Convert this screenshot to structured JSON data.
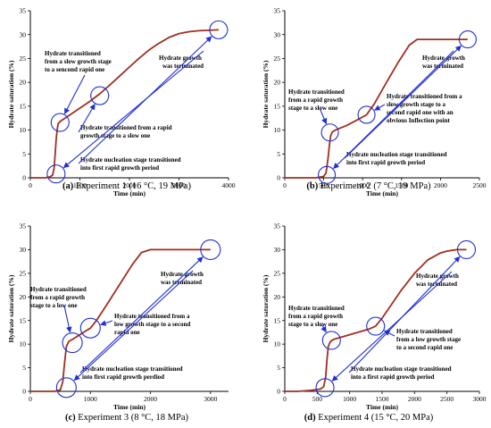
{
  "colors": {
    "curve": "#a0301e",
    "marker": "#1f2fd0",
    "axis": "#000000"
  },
  "chart_data": [
    {
      "type": "line",
      "caption_letter": "(a)",
      "caption_text": "Experiment 1 (16 °C, 19 MPa)",
      "xlabel": "Time (min)",
      "ylabel": "Hydrate saturation (%)",
      "xlim": [
        0,
        4000
      ],
      "ylim": [
        0,
        35
      ],
      "xticks": [
        0,
        1000,
        2000,
        3000,
        4000
      ],
      "yticks": [
        0,
        5,
        10,
        15,
        20,
        25,
        30,
        35
      ],
      "x": [
        0,
        150,
        300,
        400,
        450,
        480,
        500,
        520,
        540,
        560,
        600,
        800,
        1000,
        1200,
        1400,
        1600,
        1800,
        2000,
        2200,
        2400,
        2600,
        2800,
        3000,
        3200,
        3400,
        3600,
        3800
      ],
      "y": [
        0,
        0,
        0,
        0.2,
        0.6,
        2,
        5,
        8,
        10,
        11.3,
        11.8,
        13.2,
        14.6,
        16,
        17.6,
        19.4,
        21.3,
        23.2,
        25.1,
        26.8,
        28.2,
        29.4,
        30.2,
        30.6,
        30.8,
        30.9,
        31
      ],
      "markers": [
        {
          "x": 520,
          "y": 0.8
        },
        {
          "x": 600,
          "y": 11.6
        },
        {
          "x": 1400,
          "y": 17.2
        },
        {
          "x": 3800,
          "y": 31
        }
      ],
      "annotations": [
        {
          "lines": [
            "Hydrate growth",
            "was terminated"
          ]
        },
        {
          "lines": [
            "Hydrate transitioned",
            "from a slow growth stage",
            "to a sencond rapid one"
          ]
        },
        {
          "lines": [
            "Hydrate transitioned from a rapid",
            "growth stage to a slow one"
          ]
        },
        {
          "lines": [
            "Hydrate nucleation stage  transitioned",
            "into first rapid growth period"
          ]
        }
      ]
    },
    {
      "type": "line",
      "caption_letter": "(b)",
      "caption_text": "Experiment 2 (7 °C, 19 MPa)",
      "xlabel": "Time (min)",
      "ylabel": "Hydrate saturation (%)",
      "xlim": [
        0,
        2500
      ],
      "ylim": [
        0,
        35
      ],
      "xticks": [
        0,
        500,
        1000,
        1500,
        2000,
        2500
      ],
      "yticks": [
        0,
        5,
        10,
        15,
        20,
        25,
        30,
        35
      ],
      "x": [
        0,
        200,
        400,
        500,
        530,
        555,
        575,
        590,
        610,
        650,
        800,
        950,
        1050,
        1150,
        1300,
        1450,
        1600,
        1700,
        1800,
        2000,
        2200,
        2350
      ],
      "y": [
        0,
        0,
        0,
        0.3,
        1,
        4,
        7,
        8.8,
        9.6,
        10,
        11,
        12.3,
        13.2,
        15.5,
        19.8,
        24,
        27.8,
        29,
        29,
        29,
        29,
        29
      ],
      "markers": [
        {
          "x": 540,
          "y": 0.6
        },
        {
          "x": 580,
          "y": 9.5
        },
        {
          "x": 1050,
          "y": 13.2
        },
        {
          "x": 2350,
          "y": 29
        }
      ],
      "annotations": [
        {
          "lines": [
            "Hydrate growth",
            "was terminated"
          ]
        },
        {
          "lines": [
            "Hydrate transitioned",
            "from a rapid growth",
            "stage to a slow one"
          ]
        },
        {
          "lines": [
            "Hydrate transitioned from a",
            "slow growth stage to a",
            "second rapid one with an",
            "obvious  Inflection point"
          ]
        },
        {
          "lines": [
            "Hydrate nucleation stage  transitioned",
            "into first rapid growth period"
          ]
        }
      ]
    },
    {
      "type": "line",
      "caption_letter": "(c)",
      "caption_text": "Experiment 3 (8 °C, 18 MPa)",
      "xlabel": "Time (min)",
      "ylabel": "Hydrate saturation (%)",
      "xlim": [
        0,
        3300
      ],
      "ylim": [
        0,
        35
      ],
      "xticks": [
        0,
        1000,
        2000,
        3000
      ],
      "yticks": [
        0,
        5,
        10,
        15,
        20,
        25,
        30,
        35
      ],
      "x": [
        0,
        200,
        400,
        500,
        540,
        570,
        600,
        640,
        700,
        800,
        900,
        1000,
        1100,
        1300,
        1500,
        1700,
        1850,
        2000,
        2200,
        2500,
        2800,
        3000
      ],
      "y": [
        0,
        0,
        0,
        0.3,
        2,
        6,
        9.5,
        10.6,
        11,
        11.8,
        12.6,
        13.4,
        15,
        18.9,
        22.9,
        26.9,
        29.4,
        30,
        30,
        30,
        30,
        30
      ],
      "markers": [
        {
          "x": 600,
          "y": 0.8
        },
        {
          "x": 700,
          "y": 10.3
        },
        {
          "x": 1000,
          "y": 13.4
        },
        {
          "x": 3000,
          "y": 30
        }
      ],
      "annotations": [
        {
          "lines": [
            "Hydrate growth",
            "was terminated"
          ]
        },
        {
          "lines": [
            "Hydrate transitioned",
            "from a rapid growth",
            "stage to  a low one"
          ]
        },
        {
          "lines": [
            "Hydrate transitioned from a",
            "low growth stage to  a second",
            "rapid one"
          ]
        },
        {
          "lines": [
            "Hydrate nucleation stage transitioned",
            "into first rapid growth perdiod"
          ]
        }
      ]
    },
    {
      "type": "line",
      "caption_letter": "(d)",
      "caption_text": "Experiment 4 (15 °C, 20 MPa)",
      "xlabel": "Time (min)",
      "ylabel": "Hydrate saturation (%)",
      "xlim": [
        0,
        3000
      ],
      "ylim": [
        0,
        35
      ],
      "xticks": [
        0,
        500,
        1000,
        1500,
        2000,
        2500,
        3000
      ],
      "yticks": [
        0,
        5,
        10,
        15,
        20,
        25,
        30,
        35
      ],
      "x": [
        0,
        200,
        400,
        550,
        600,
        630,
        650,
        670,
        700,
        750,
        900,
        1100,
        1300,
        1400,
        1500,
        1650,
        1800,
        2000,
        2200,
        2400,
        2500,
        2650,
        2800
      ],
      "y": [
        0,
        0,
        0.2,
        0.5,
        1,
        3,
        6.5,
        9.5,
        10.5,
        11,
        11.6,
        12.4,
        13.2,
        13.8,
        15.5,
        18.5,
        21.5,
        25,
        27.8,
        29.3,
        29.7,
        30,
        30
      ],
      "markers": [
        {
          "x": 620,
          "y": 0.8
        },
        {
          "x": 720,
          "y": 10.8
        },
        {
          "x": 1400,
          "y": 13.8
        },
        {
          "x": 2800,
          "y": 30
        }
      ],
      "annotations": [
        {
          "lines": [
            "Hydrate growth",
            "was terminated"
          ]
        },
        {
          "lines": [
            "Hydrate  transitioned",
            "from a rapid growth",
            "stage to a slow one"
          ]
        },
        {
          "lines": [
            "Hydrate  transitioned",
            "from a low growth stage",
            "to a second rapid one"
          ]
        },
        {
          "lines": [
            "Hydrate nucleation stage transitioned",
            "into a first rapid growth period"
          ]
        }
      ]
    }
  ]
}
